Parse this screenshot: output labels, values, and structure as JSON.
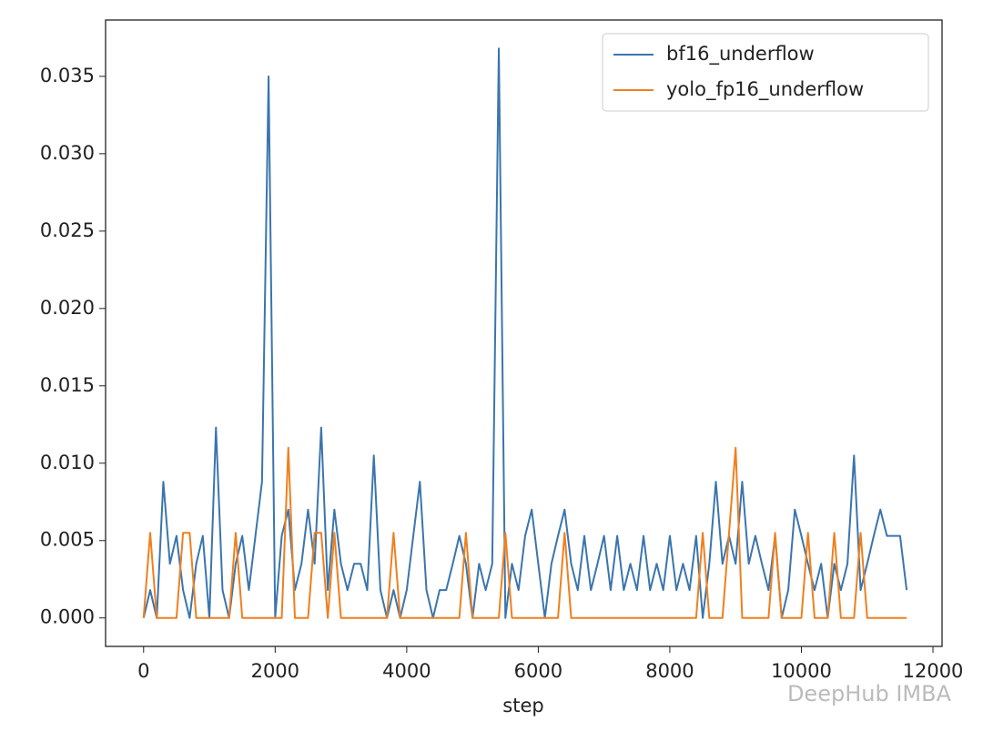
{
  "chart_data": {
    "type": "line",
    "xlabel": "step",
    "watermark": "DeepHub IMBA",
    "x": [
      0,
      100,
      200,
      300,
      400,
      500,
      600,
      700,
      800,
      900,
      1000,
      1100,
      1200,
      1300,
      1400,
      1500,
      1600,
      1700,
      1800,
      1900,
      2000,
      2100,
      2200,
      2300,
      2400,
      2500,
      2600,
      2700,
      2800,
      2900,
      3000,
      3100,
      3200,
      3300,
      3400,
      3500,
      3600,
      3700,
      3800,
      3900,
      4000,
      4100,
      4200,
      4300,
      4400,
      4500,
      4600,
      4700,
      4800,
      4900,
      5000,
      5100,
      5200,
      5300,
      5400,
      5500,
      5600,
      5700,
      5800,
      5900,
      6000,
      6100,
      6200,
      6300,
      6400,
      6500,
      6600,
      6700,
      6800,
      6900,
      7000,
      7100,
      7200,
      7300,
      7400,
      7500,
      7600,
      7700,
      7800,
      7900,
      8000,
      8100,
      8200,
      8300,
      8400,
      8500,
      8600,
      8700,
      8800,
      8900,
      9000,
      9100,
      9200,
      9300,
      9400,
      9500,
      9600,
      9700,
      9800,
      9900,
      10000,
      10100,
      10200,
      10300,
      10400,
      10500,
      10600,
      10700,
      10800,
      10900,
      11000,
      11100,
      11200,
      11300,
      11400,
      11500,
      11600
    ],
    "series": [
      {
        "name": "bf16_underflow",
        "color": "#3a75ae",
        "values": [
          0,
          0.0018,
          0,
          0.0088,
          0.0035,
          0.0053,
          0.0018,
          0,
          0.0035,
          0.0053,
          0,
          0.0123,
          0.0018,
          0,
          0.0035,
          0.0053,
          0.0018,
          0.0053,
          0.0088,
          0.035,
          0,
          0.0053,
          0.007,
          0.0018,
          0.0035,
          0.007,
          0.0035,
          0.0123,
          0.0018,
          0.007,
          0.0035,
          0.0018,
          0.0035,
          0.0035,
          0.0018,
          0.0105,
          0.0018,
          0,
          0.0018,
          0,
          0.0018,
          0.0053,
          0.0088,
          0.0018,
          0,
          0.0018,
          0.0018,
          0.0035,
          0.0053,
          0.0035,
          0,
          0.0035,
          0.0018,
          0.0035,
          0.0368,
          0,
          0.0035,
          0.0018,
          0.0053,
          0.007,
          0.0035,
          0,
          0.0035,
          0.0053,
          0.007,
          0.0035,
          0.0018,
          0.0053,
          0.0018,
          0.0035,
          0.0053,
          0.0018,
          0.0053,
          0.0018,
          0.0035,
          0.0018,
          0.0053,
          0.0018,
          0.0035,
          0.0018,
          0.0053,
          0.0018,
          0.0035,
          0.0018,
          0.0053,
          0,
          0.0035,
          0.0088,
          0.0035,
          0.0053,
          0.0035,
          0.0088,
          0.0035,
          0.0053,
          0.0035,
          0.0018,
          0.0053,
          0,
          0.0018,
          0.007,
          0.0053,
          0.0035,
          0.0018,
          0.0035,
          0,
          0.0035,
          0.0018,
          0.0035,
          0.0105,
          0.0018,
          0.0035,
          0.0053,
          0.007,
          0.0053,
          0.0053,
          0.0053,
          0.0018
        ]
      },
      {
        "name": "yolo_fp16_underflow",
        "color": "#f07f1e",
        "values": [
          0,
          0.0055,
          0,
          0,
          0,
          0,
          0.0055,
          0.0055,
          0,
          0,
          0,
          0,
          0,
          0,
          0.0055,
          0,
          0,
          0,
          0,
          0,
          0,
          0,
          0.011,
          0,
          0,
          0,
          0.0055,
          0.0055,
          0,
          0.0055,
          0,
          0,
          0,
          0,
          0,
          0,
          0,
          0,
          0.0055,
          0,
          0,
          0,
          0,
          0,
          0,
          0,
          0,
          0,
          0,
          0.0055,
          0,
          0,
          0,
          0,
          0,
          0.0055,
          0,
          0,
          0,
          0,
          0,
          0,
          0,
          0,
          0.0055,
          0,
          0,
          0,
          0,
          0,
          0,
          0,
          0,
          0,
          0,
          0,
          0,
          0,
          0,
          0,
          0,
          0,
          0,
          0,
          0,
          0.0055,
          0,
          0,
          0,
          0.0055,
          0.011,
          0,
          0,
          0,
          0,
          0,
          0.0055,
          0,
          0,
          0,
          0,
          0.0055,
          0,
          0,
          0,
          0.0055,
          0,
          0,
          0,
          0.0055,
          0,
          0,
          0,
          0,
          0,
          0,
          0
        ]
      }
    ],
    "xlim": [
      -578,
      12138
    ],
    "ylim": [
      -0.00184,
      0.03864
    ],
    "xticks": [
      0,
      2000,
      4000,
      6000,
      8000,
      10000,
      12000
    ],
    "yticks": [
      {
        "value": 0,
        "label": "0.000"
      },
      {
        "value": 0.005,
        "label": "0.005"
      },
      {
        "value": 0.01,
        "label": "0.010"
      },
      {
        "value": 0.015,
        "label": "0.015"
      },
      {
        "value": 0.02,
        "label": "0.020"
      },
      {
        "value": 0.025,
        "label": "0.025"
      },
      {
        "value": 0.03,
        "label": "0.030"
      },
      {
        "value": 0.035,
        "label": "0.035"
      }
    ],
    "legend": "upper right"
  }
}
